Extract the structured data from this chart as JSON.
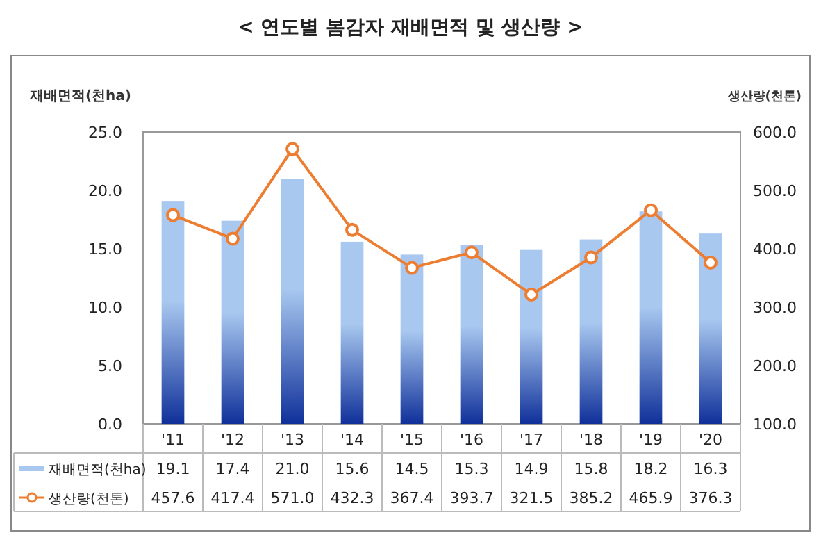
{
  "chart_data": {
    "type": "bar",
    "title": "< 연도별 봄감자 재배면적 및 생산량 >",
    "ylabel": "재배면적(천ha)",
    "y2label": "생산량(천톤)",
    "categories": [
      "'11",
      "'12",
      "'13",
      "'14",
      "'15",
      "'16",
      "'17",
      "'18",
      "'19",
      "'20"
    ],
    "series": [
      {
        "name": "재배면적(천ha)",
        "color": "#a8c8f0",
        "values": [
          19.1,
          17.4,
          21.0,
          15.6,
          14.5,
          15.3,
          14.9,
          15.8,
          18.2,
          16.3
        ],
        "value_labels": [
          "19.1",
          "17.4",
          "21.0",
          "15.6",
          "14.5",
          "15.3",
          "14.9",
          "15.8",
          "18.2",
          "16.3"
        ]
      },
      {
        "name": "생산량(천톤)",
        "type": "line",
        "axis": "y2",
        "color": "#ed7d31",
        "marker": "circle",
        "values": [
          457.6,
          417.4,
          571.0,
          432.3,
          367.4,
          393.7,
          321.5,
          385.2,
          465.9,
          376.3
        ],
        "value_labels": [
          "457.6",
          "417.4",
          "571.0",
          "432.3",
          "367.4",
          "393.7",
          "321.5",
          "385.2",
          "465.9",
          "376.3"
        ]
      }
    ],
    "ylim": [
      0,
      25
    ],
    "yticks": [
      {
        "value": 0,
        "label": "0.0"
      },
      {
        "value": 5,
        "label": "5.0"
      },
      {
        "value": 10,
        "label": "10.0"
      },
      {
        "value": 15,
        "label": "15.0"
      },
      {
        "value": 20,
        "label": "20.0"
      },
      {
        "value": 25,
        "label": "25.0"
      }
    ],
    "y2lim": [
      100,
      600
    ],
    "y2ticks": [
      {
        "value": 100,
        "label": "100.0"
      },
      {
        "value": 200,
        "label": "200.0"
      },
      {
        "value": 300,
        "label": "300.0"
      },
      {
        "value": 400,
        "label": "400.0"
      },
      {
        "value": 500,
        "label": "500.0"
      },
      {
        "value": 600,
        "label": "600.0"
      }
    ],
    "legend": "bottom",
    "grid": false
  }
}
